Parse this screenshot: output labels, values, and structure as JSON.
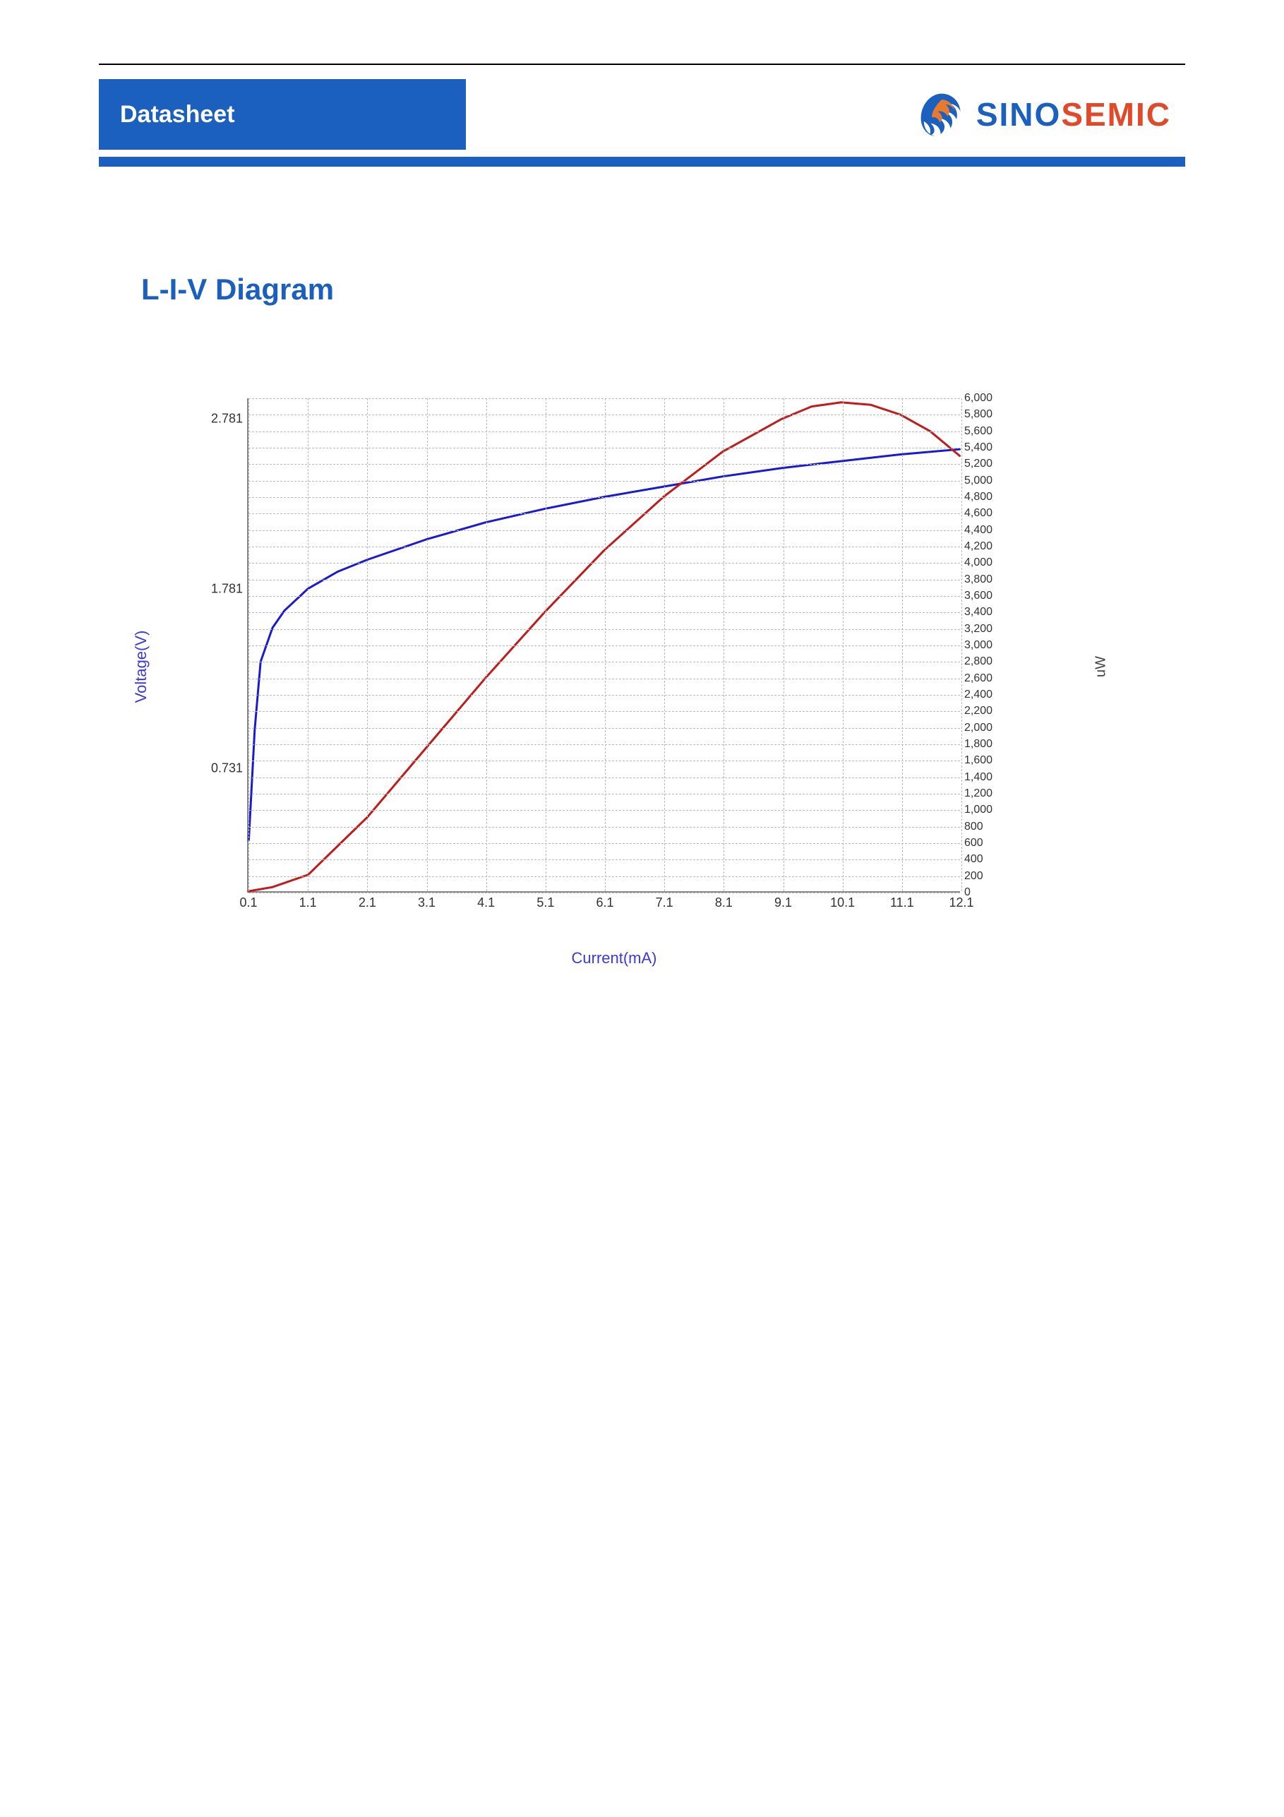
{
  "header": {
    "datasheet_label": "Datasheet",
    "brand_part1": "SINO",
    "brand_part2": "SEMIC"
  },
  "section": {
    "title": "L-I-V Diagram"
  },
  "chart": {
    "type": "line-dual-axis",
    "background_color": "#ffffff",
    "grid_color": "#bcbcbc",
    "x": {
      "label": "Current(mA)",
      "min": 0.1,
      "max": 12.1,
      "ticks": [
        0.1,
        1.1,
        2.1,
        3.1,
        4.1,
        5.1,
        6.1,
        7.1,
        8.1,
        9.1,
        10.1,
        11.1,
        12.1
      ],
      "label_color": "#3a3ae0",
      "label_fontsize": 22
    },
    "y_left": {
      "label": "Voltage(V)",
      "min": 0,
      "max": 2.9,
      "ticks": [
        0.731,
        1.781,
        2.781
      ],
      "label_color": "#3a3ae0",
      "label_fontsize": 22
    },
    "y_right": {
      "label": "uW",
      "min": 0,
      "max": 6000,
      "ticks": [
        0,
        200,
        400,
        600,
        800,
        1000,
        1200,
        1400,
        1600,
        1800,
        2000,
        2200,
        2400,
        2600,
        2800,
        3000,
        3200,
        3400,
        3600,
        3800,
        4000,
        4200,
        4400,
        4600,
        4800,
        5000,
        5200,
        5400,
        5600,
        5800,
        6000
      ],
      "label_color": "#444444",
      "label_fontsize": 20
    },
    "series": [
      {
        "name": "voltage",
        "axis": "left",
        "color": "#1a1ad6",
        "line_width": 3,
        "x": [
          0.1,
          0.2,
          0.3,
          0.5,
          0.7,
          1.1,
          1.6,
          2.1,
          3.1,
          4.1,
          5.1,
          6.1,
          7.1,
          8.1,
          9.1,
          10.1,
          11.1,
          12.1
        ],
        "y": [
          0.3,
          0.95,
          1.35,
          1.55,
          1.65,
          1.78,
          1.88,
          1.95,
          2.07,
          2.17,
          2.25,
          2.32,
          2.38,
          2.44,
          2.49,
          2.53,
          2.57,
          2.6
        ]
      },
      {
        "name": "power",
        "axis": "right",
        "color": "#c11b1b",
        "line_width": 3,
        "x": [
          0.1,
          0.5,
          1.1,
          2.1,
          3.1,
          4.1,
          5.1,
          6.1,
          7.1,
          8.1,
          9.1,
          9.6,
          10.1,
          10.6,
          11.1,
          11.6,
          12.1
        ],
        "y": [
          0,
          50,
          200,
          900,
          1750,
          2600,
          3400,
          4150,
          4800,
          5350,
          5750,
          5900,
          5950,
          5920,
          5800,
          5600,
          5300
        ]
      }
    ]
  }
}
